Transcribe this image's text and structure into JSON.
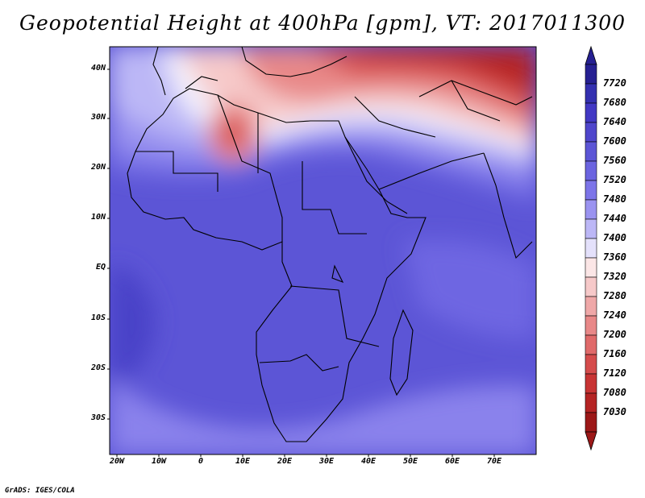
{
  "title": "Geopotential Height at 400hPa [gpm], VT: 2017011300",
  "variable": "Geopotential Height",
  "level": "400hPa",
  "units": "gpm",
  "valid_time": "2017011300",
  "lat_labels": [
    "40N",
    "30N",
    "20N",
    "10N",
    "EQ",
    "10S",
    "20S",
    "30S"
  ],
  "lon_labels": [
    "20W",
    "10W",
    "0",
    "10E",
    "20E",
    "30E",
    "40E",
    "50E",
    "60E",
    "70E"
  ],
  "colorbar": {
    "labels": [
      "7720",
      "7680",
      "7640",
      "7600",
      "7560",
      "7520",
      "7480",
      "7440",
      "7400",
      "7360",
      "7320",
      "7280",
      "7240",
      "7200",
      "7160",
      "7120",
      "7080",
      "7030"
    ],
    "colors": [
      "#262092",
      "#3430b0",
      "#4238c4",
      "#4f46cc",
      "#5c55d6",
      "#6b64e0",
      "#7c74e8",
      "#9a93f0",
      "#bcb7f6",
      "#e4e1fb",
      "#fbe6e6",
      "#f6c9c9",
      "#efa8a8",
      "#e88888",
      "#e06a6a",
      "#d54c4c",
      "#c83434",
      "#b52424",
      "#9c1818"
    ]
  },
  "credit": "GrADS: IGES/COLA",
  "colors": {
    "frame": "#000000",
    "background": "#ffffff"
  }
}
